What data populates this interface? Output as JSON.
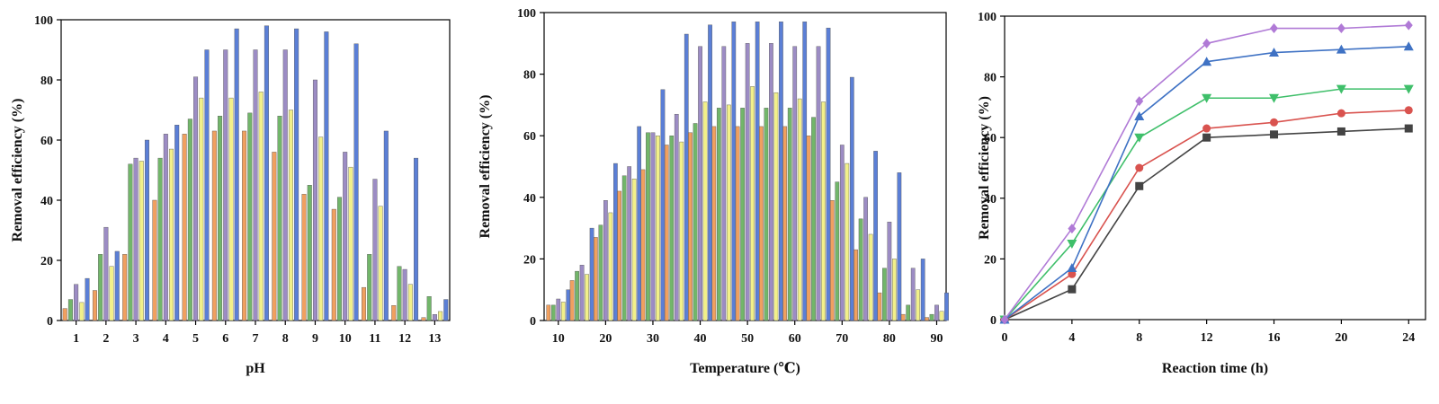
{
  "colors": {
    "orange": "#f0a060",
    "green": "#72b66a",
    "purple": "#9c8cc4",
    "yellow": "#f2f08a",
    "blue": "#5b7fd6",
    "black_series": "#444444",
    "red_series": "#d9534f",
    "green_series": "#3fbf6a",
    "blue_series": "#3f72c4",
    "purple_series": "#b07ad6"
  },
  "chart_data": [
    {
      "type": "bar",
      "title": "",
      "xlabel": "pH",
      "ylabel": "Removal efficiency (%)",
      "ylim": [
        0,
        100
      ],
      "yticks": [
        "0",
        "20",
        "40",
        "60",
        "80",
        "100"
      ],
      "categories": [
        "1",
        "2",
        "3",
        "4",
        "5",
        "6",
        "7",
        "8",
        "9",
        "10",
        "11",
        "12",
        "13"
      ],
      "series": [
        {
          "name": "orange",
          "values": [
            4,
            10,
            22,
            40,
            62,
            63,
            63,
            56,
            42,
            37,
            11,
            5,
            1
          ]
        },
        {
          "name": "green",
          "values": [
            7,
            22,
            52,
            54,
            67,
            68,
            69,
            68,
            45,
            41,
            22,
            18,
            8
          ]
        },
        {
          "name": "purple",
          "values": [
            12,
            31,
            54,
            62,
            81,
            90,
            90,
            90,
            80,
            56,
            47,
            17,
            2
          ]
        },
        {
          "name": "yellow",
          "values": [
            6,
            18,
            53,
            57,
            74,
            74,
            76,
            70,
            61,
            51,
            38,
            12,
            3
          ]
        },
        {
          "name": "blue",
          "values": [
            14,
            23,
            60,
            65,
            90,
            97,
            98,
            97,
            96,
            92,
            63,
            54,
            7
          ]
        }
      ]
    },
    {
      "type": "bar",
      "title": "",
      "xlabel": "Temperature (℃)",
      "ylabel": "Removal efficiency (%)",
      "ylim": [
        0,
        100
      ],
      "xlim": [
        7,
        92
      ],
      "yticks": [
        "0",
        "20",
        "40",
        "60",
        "80",
        "100"
      ],
      "xticks": [
        "10",
        "20",
        "30",
        "40",
        "50",
        "60",
        "70",
        "80",
        "90"
      ],
      "x": [
        10,
        15,
        20,
        25,
        30,
        35,
        40,
        45,
        50,
        55,
        60,
        65,
        70,
        75,
        80,
        85,
        90
      ],
      "series": [
        {
          "name": "orange",
          "values": [
            5,
            13,
            27,
            42,
            49,
            57,
            61,
            63,
            63,
            63,
            63,
            60,
            39,
            23,
            9,
            2,
            1
          ]
        },
        {
          "name": "green",
          "values": [
            5,
            16,
            31,
            47,
            61,
            60,
            64,
            69,
            69,
            69,
            69,
            66,
            45,
            33,
            17,
            5,
            2
          ]
        },
        {
          "name": "purple",
          "values": [
            7,
            18,
            39,
            50,
            61,
            67,
            89,
            89,
            90,
            90,
            89,
            89,
            57,
            40,
            32,
            17,
            5
          ]
        },
        {
          "name": "yellow",
          "values": [
            6,
            15,
            35,
            46,
            60,
            58,
            71,
            70,
            76,
            74,
            72,
            71,
            51,
            28,
            20,
            10,
            3
          ]
        },
        {
          "name": "blue",
          "values": [
            10,
            30,
            51,
            63,
            75,
            93,
            96,
            97,
            97,
            97,
            97,
            95,
            79,
            55,
            48,
            20,
            9
          ]
        }
      ]
    },
    {
      "type": "line",
      "title": "",
      "xlabel": "Reaction time (h)",
      "ylabel": "Removal efficiency (%)",
      "xlim": [
        0,
        25
      ],
      "ylim": [
        0,
        100
      ],
      "xticks": [
        "0",
        "4",
        "8",
        "12",
        "16",
        "20",
        "24"
      ],
      "yticks": [
        "0",
        "20",
        "40",
        "60",
        "80",
        "100"
      ],
      "x": [
        0,
        4,
        8,
        12,
        16,
        20,
        24
      ],
      "series": [
        {
          "name": "black",
          "marker": "square",
          "values": [
            0,
            10,
            44,
            60,
            61,
            62,
            63
          ]
        },
        {
          "name": "red",
          "marker": "circle",
          "values": [
            0,
            15,
            50,
            63,
            65,
            68,
            69
          ]
        },
        {
          "name": "green",
          "marker": "triangle-down",
          "values": [
            0,
            25,
            60,
            73,
            73,
            76,
            76
          ]
        },
        {
          "name": "blue",
          "marker": "triangle-up",
          "values": [
            0,
            17,
            67,
            85,
            88,
            89,
            90
          ]
        },
        {
          "name": "purple",
          "marker": "diamond",
          "values": [
            0,
            30,
            72,
            91,
            96,
            96,
            97
          ]
        }
      ]
    }
  ]
}
